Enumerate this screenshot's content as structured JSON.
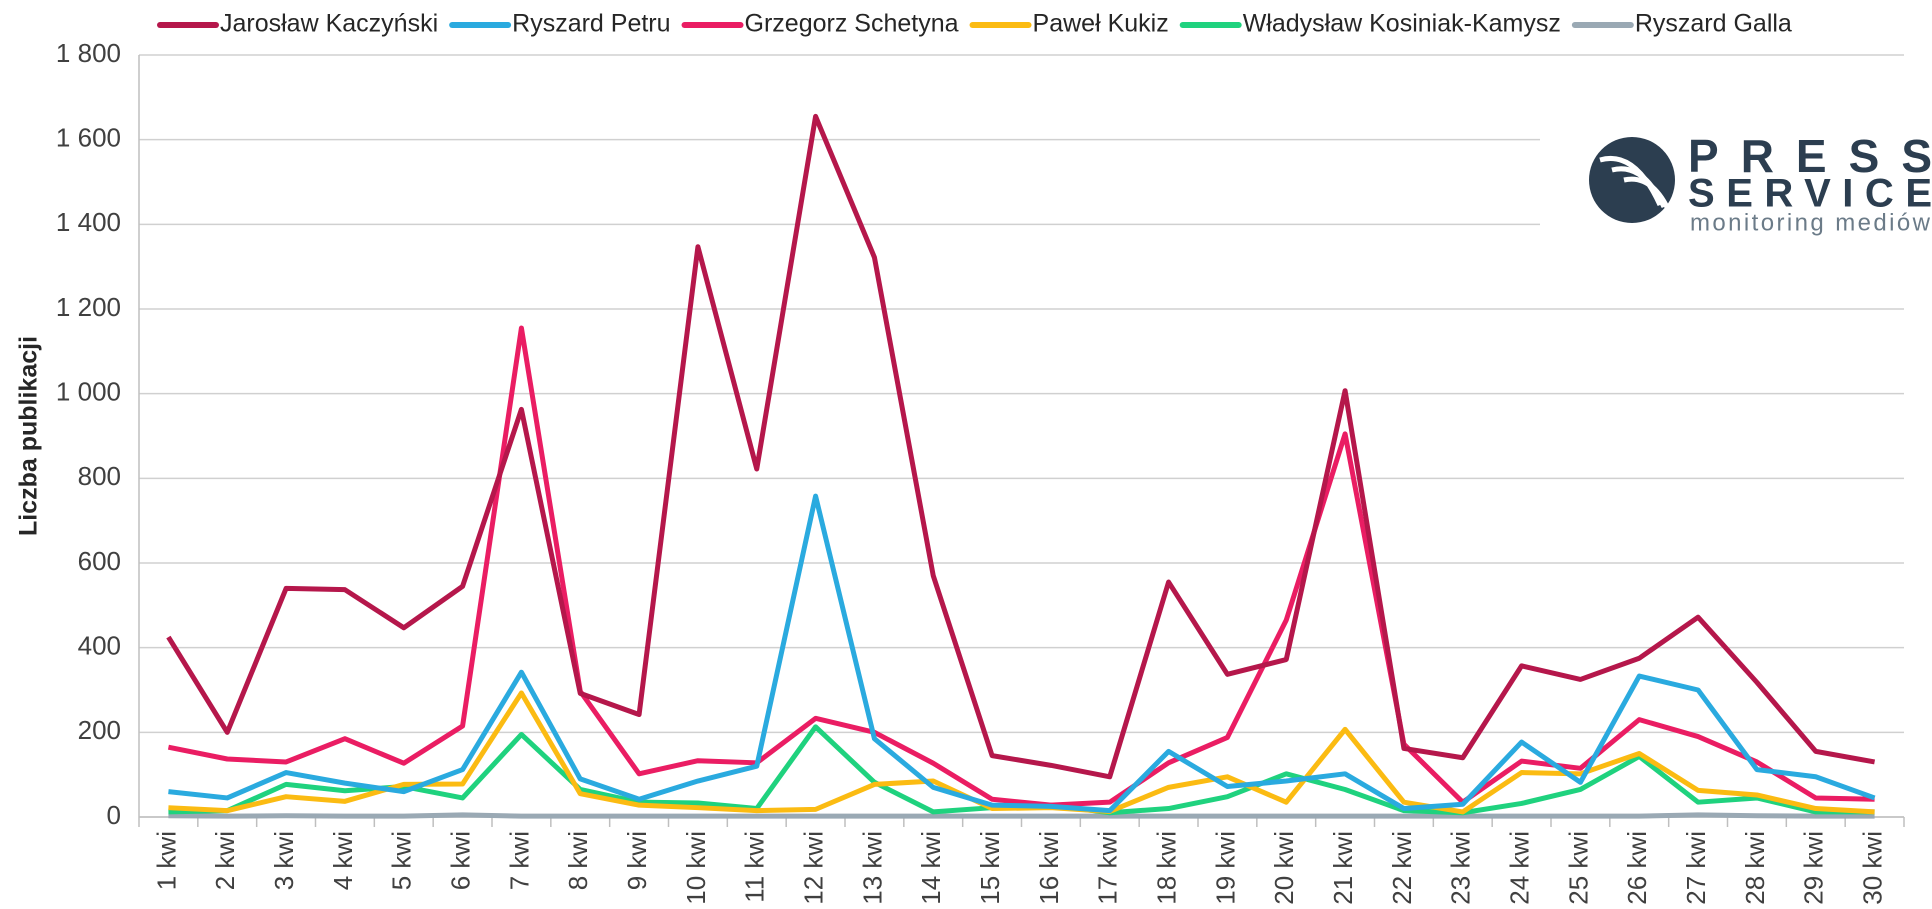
{
  "chart_data": {
    "type": "line",
    "y_label": "Liczba publikacji",
    "categories": [
      "1 kwi",
      "2 kwi",
      "3 kwi",
      "4 kwi",
      "5 kwi",
      "6 kwi",
      "7 kwi",
      "8 kwi",
      "9 kwi",
      "10 kwi",
      "11 kwi",
      "12 kwi",
      "13 kwi",
      "14 kwi",
      "15 kwi",
      "16 kwi",
      "17 kwi",
      "18 kwi",
      "19 kwi",
      "20 kwi",
      "21 kwi",
      "22 kwi",
      "23 kwi",
      "24 kwi",
      "25 kwi",
      "26 kwi",
      "27 kwi",
      "28 kwi",
      "29 kwi",
      "30 kwi"
    ],
    "series": [
      {
        "name": "Jarosław Kaczyński",
        "color": "#b5174b",
        "values": [
          425,
          200,
          540,
          537,
          447,
          545,
          963,
          292,
          242,
          1347,
          822,
          1655,
          1322,
          570,
          145,
          122,
          95,
          555,
          337,
          372,
          1007,
          162,
          140,
          357,
          325,
          375,
          472,
          318,
          155,
          130
        ]
      },
      {
        "name": "Ryszard Petru",
        "color": "#2aaadf",
        "values": [
          60,
          45,
          105,
          80,
          60,
          112,
          342,
          90,
          42,
          85,
          120,
          758,
          185,
          70,
          28,
          25,
          15,
          155,
          72,
          85,
          102,
          20,
          30,
          177,
          82,
          333,
          300,
          112,
          95,
          45
        ]
      },
      {
        "name": "Grzegorz Schetyna",
        "color": "#ea1d63",
        "values": [
          165,
          137,
          130,
          185,
          127,
          215,
          1155,
          297,
          102,
          133,
          128,
          233,
          200,
          127,
          42,
          28,
          35,
          128,
          188,
          465,
          905,
          172,
          35,
          132,
          115,
          230,
          190,
          130,
          45,
          42
        ]
      },
      {
        "name": "Paweł Kukiz",
        "color": "#fbbb12",
        "values": [
          22,
          15,
          48,
          37,
          77,
          78,
          293,
          55,
          28,
          22,
          15,
          18,
          77,
          85,
          20,
          22,
          13,
          70,
          95,
          35,
          207,
          35,
          12,
          105,
          102,
          150,
          63,
          52,
          20,
          12
        ]
      },
      {
        "name": "Władysław Kosiniak-Kamysz",
        "color": "#1fd27e",
        "values": [
          12,
          15,
          77,
          62,
          72,
          45,
          195,
          65,
          35,
          33,
          20,
          213,
          82,
          12,
          22,
          28,
          10,
          20,
          48,
          102,
          65,
          15,
          10,
          32,
          65,
          143,
          35,
          45,
          12,
          12
        ]
      },
      {
        "name": "Ryszard Galla",
        "color": "#9aa9b4",
        "values": [
          3,
          2,
          3,
          2,
          2,
          5,
          2,
          2,
          2,
          2,
          2,
          2,
          2,
          2,
          2,
          2,
          2,
          2,
          2,
          2,
          2,
          2,
          2,
          2,
          2,
          2,
          5,
          3,
          2,
          2
        ]
      }
    ],
    "ylim": [
      0,
      1800
    ],
    "yticks": [
      0,
      200,
      400,
      600,
      800,
      {
        "value": 1000,
        "label": "1 000"
      },
      {
        "value": 1200,
        "label": "1 200"
      },
      {
        "value": 1400,
        "label": "1 400"
      },
      {
        "value": 1600,
        "label": "1 600"
      },
      {
        "value": 1800,
        "label": "1 800"
      }
    ],
    "grid": true,
    "legend": "top"
  },
  "logo": {
    "line1": "PRESS",
    "line2": "SERVICE",
    "tagline": "monitoring mediów"
  }
}
